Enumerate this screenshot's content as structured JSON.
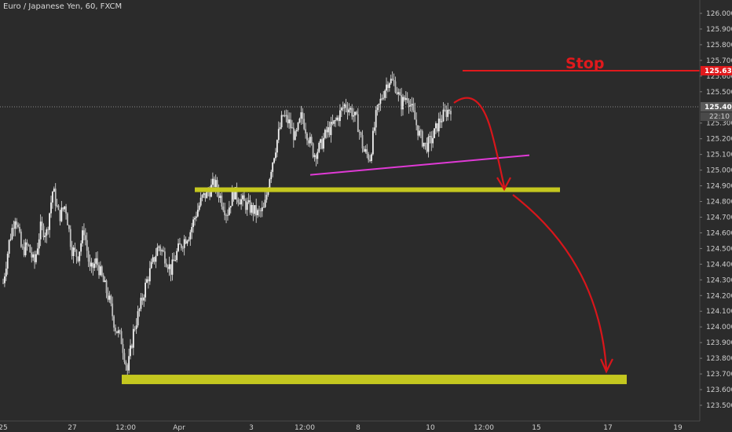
{
  "header": {
    "title": "Euro / Japanese Yen, 60, FXCM"
  },
  "colors": {
    "background": "#2b2b2b",
    "candle_body": "#f2f2f2",
    "candle_wick": "#e6e6e6",
    "support_zone": "#c4c71f",
    "stop_line": "#e0191c",
    "trend_line": "#e03ad6",
    "forecast_arrow": "#d8161b",
    "price_tag_bg": "#5a5a5a",
    "price_tag_text": "#ffffff"
  },
  "annotations": {
    "stop_label": "Stop",
    "stop_price": "125.634",
    "current_price": "125.404",
    "countdown": "22:10"
  },
  "chart_data": {
    "type": "candlestick",
    "title": "Euro / Japanese Yen, 60, FXCM",
    "ylim": [
      123.48,
      126.08
    ],
    "y_ticks": [
      "126.000",
      "125.900",
      "125.800",
      "125.700",
      "125.600",
      "125.500",
      "125.300",
      "125.200",
      "125.100",
      "125.000",
      "124.900",
      "124.800",
      "124.700",
      "124.600",
      "124.500",
      "124.400",
      "124.300",
      "124.200",
      "124.100",
      "124.000",
      "123.900",
      "123.800",
      "123.700",
      "123.600",
      "123.500"
    ],
    "x_ticks": [
      "25",
      "27",
      "12:00",
      "Apr",
      "3",
      "12:00",
      "8",
      "10",
      "12:00",
      "15",
      "17",
      "19"
    ],
    "close_path": [
      124.28,
      124.55,
      124.72,
      124.48,
      124.52,
      124.4,
      124.63,
      124.6,
      124.88,
      124.7,
      124.78,
      124.5,
      124.45,
      124.62,
      124.35,
      124.42,
      124.3,
      124.18,
      124.0,
      123.92,
      123.72,
      123.98,
      124.12,
      124.28,
      124.4,
      124.52,
      124.45,
      124.36,
      124.48,
      124.55,
      124.6,
      124.72,
      124.82,
      124.86,
      124.92,
      124.82,
      124.72,
      124.86,
      124.82,
      124.78,
      124.75,
      124.72,
      124.75,
      125.0,
      125.18,
      125.35,
      125.3,
      125.2,
      125.35,
      125.22,
      125.1,
      125.15,
      125.24,
      125.28,
      125.35,
      125.42,
      125.38,
      125.3,
      125.12,
      125.08,
      125.35,
      125.48,
      125.58,
      125.55,
      125.42,
      125.48,
      125.35,
      125.22,
      125.15,
      125.2,
      125.3,
      125.36,
      125.4
    ],
    "current_price": 125.404,
    "stop_level": 125.634,
    "support_zones": [
      124.875,
      123.665
    ],
    "trend_line": {
      "start": [
        "Apr 3 12:00",
        124.97
      ],
      "end": [
        "Apr 14 12:00",
        125.095
      ]
    }
  }
}
